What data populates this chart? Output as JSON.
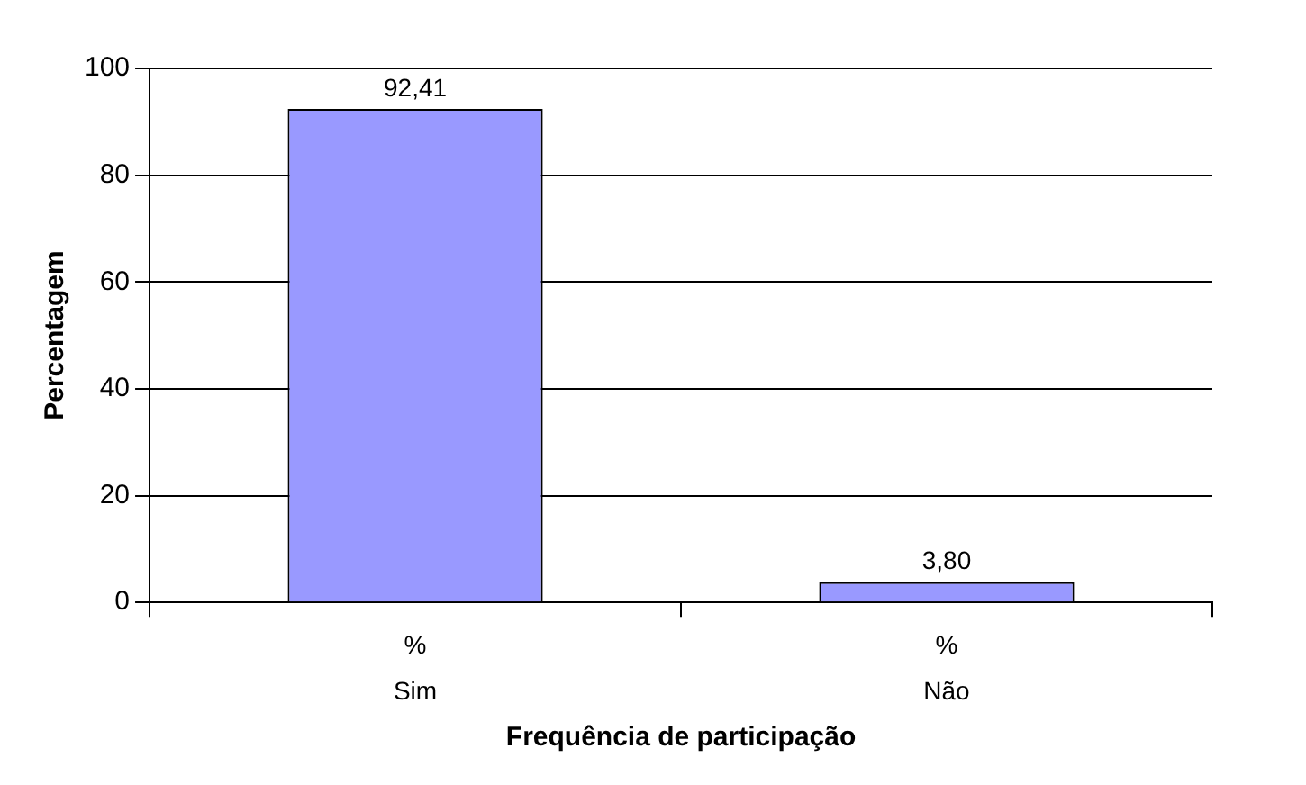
{
  "chart_data": {
    "type": "bar",
    "xlabel": "Frequência de participação",
    "ylabel": "Percentagem",
    "categories": [
      "%\nSim",
      "%\nNão"
    ],
    "values": [
      92.41,
      3.8
    ],
    "color": "#9999ff",
    "value_labels": [
      "92,41",
      "3,80"
    ],
    "ylim": [
      0,
      100
    ],
    "yticks": [
      0,
      20,
      40,
      60,
      80,
      100
    ],
    "grid": "y"
  }
}
